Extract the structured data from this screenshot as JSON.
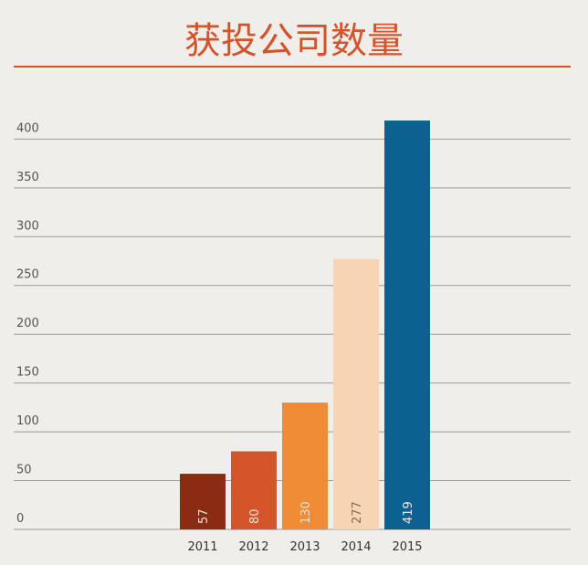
{
  "chart_data": {
    "type": "bar",
    "title": "获投公司数量",
    "categories": [
      "2011",
      "2012",
      "2013",
      "2014",
      "2015"
    ],
    "values": [
      57,
      80,
      130,
      277,
      419
    ],
    "colors": [
      "#8c2b14",
      "#d6542a",
      "#f08c35",
      "#f6d4b4",
      "#0b6291"
    ],
    "ylim": [
      0,
      420
    ],
    "yticks": [
      0,
      50,
      100,
      150,
      200,
      250,
      300,
      350,
      400
    ],
    "grid": true
  }
}
